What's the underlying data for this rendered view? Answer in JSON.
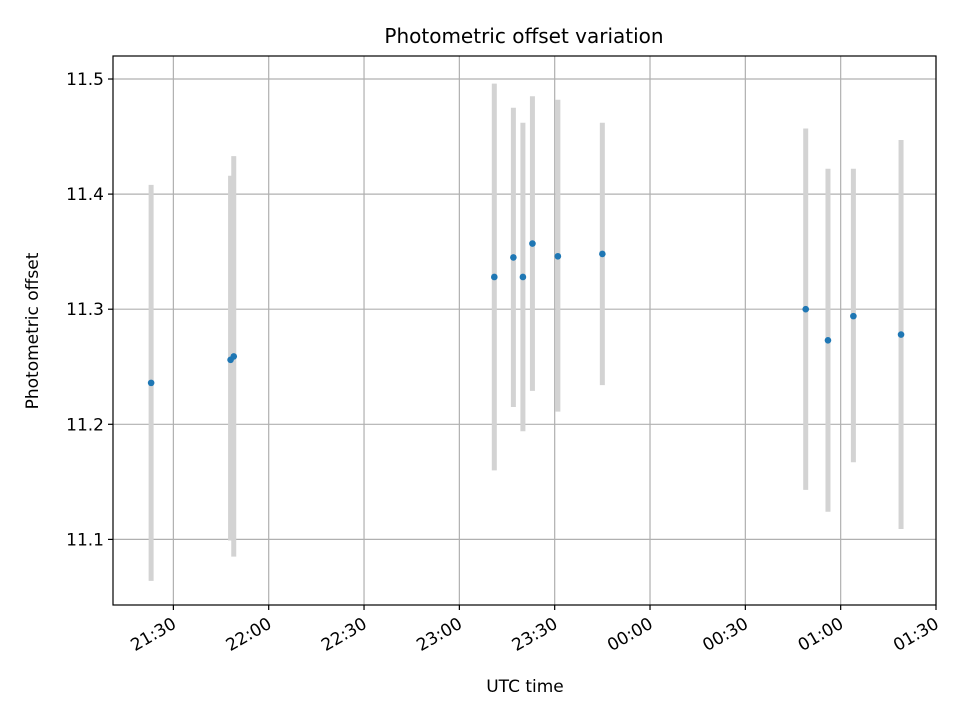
{
  "chart_data": {
    "type": "scatter",
    "title": "Photometric offset variation",
    "xlabel": "UTC time",
    "ylabel": "Photometric offset",
    "x_kind": "time",
    "xlim": [
      "21:11",
      "01:30"
    ],
    "ylim": [
      11.043,
      11.52
    ],
    "x_ticks": [
      "21:30",
      "22:00",
      "22:30",
      "23:00",
      "23:30",
      "00:00",
      "00:30",
      "01:00",
      "01:30"
    ],
    "y_ticks": [
      11.1,
      11.2,
      11.3,
      11.4,
      11.5
    ],
    "grid": true,
    "series": [
      {
        "color": "#1f77b4",
        "errorbar_color": "#d3d3d3",
        "points": [
          {
            "x": "21:23",
            "y": 11.236,
            "ymin": 11.064,
            "ymax": 11.408
          },
          {
            "x": "21:48",
            "y": 11.256,
            "ymin": 11.099,
            "ymax": 11.416
          },
          {
            "x": "21:49",
            "y": 11.259,
            "ymin": 11.085,
            "ymax": 11.433
          },
          {
            "x": "23:11",
            "y": 11.328,
            "ymin": 11.16,
            "ymax": 11.496
          },
          {
            "x": "23:17",
            "y": 11.345,
            "ymin": 11.215,
            "ymax": 11.475
          },
          {
            "x": "23:20",
            "y": 11.328,
            "ymin": 11.194,
            "ymax": 11.462
          },
          {
            "x": "23:23",
            "y": 11.357,
            "ymin": 11.229,
            "ymax": 11.485
          },
          {
            "x": "23:31",
            "y": 11.346,
            "ymin": 11.211,
            "ymax": 11.482
          },
          {
            "x": "23:45",
            "y": 11.348,
            "ymin": 11.234,
            "ymax": 11.462
          },
          {
            "x": "00:49",
            "y": 11.3,
            "ymin": 11.143,
            "ymax": 11.457
          },
          {
            "x": "00:56",
            "y": 11.273,
            "ymin": 11.124,
            "ymax": 11.422
          },
          {
            "x": "01:04",
            "y": 11.294,
            "ymin": 11.167,
            "ymax": 11.422
          },
          {
            "x": "01:19",
            "y": 11.278,
            "ymin": 11.109,
            "ymax": 11.447
          }
        ]
      }
    ]
  }
}
